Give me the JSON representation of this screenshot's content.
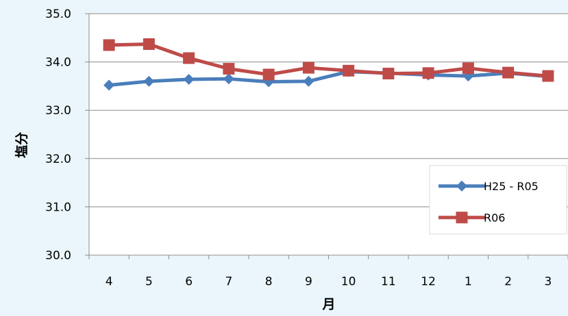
{
  "chart_data": {
    "type": "line",
    "title": "",
    "xlabel": "月",
    "ylabel": "塩分",
    "categories": [
      "4",
      "5",
      "6",
      "7",
      "8",
      "9",
      "10",
      "11",
      "12",
      "1",
      "2",
      "3"
    ],
    "ylim": [
      30.0,
      35.0
    ],
    "yticks": [
      30.0,
      31.0,
      32.0,
      33.0,
      34.0,
      35.0
    ],
    "ytick_labels": [
      "30.0",
      "31.0",
      "32.0",
      "33.0",
      "34.0",
      "35.0"
    ],
    "grid": true,
    "legend_position": "bottom-right",
    "series": [
      {
        "name": "H25 - R05",
        "marker": "diamond",
        "color": "#4a7ebb",
        "values": [
          33.52,
          33.6,
          33.64,
          33.65,
          33.59,
          33.6,
          33.8,
          33.77,
          33.73,
          33.71,
          33.77,
          33.7
        ]
      },
      {
        "name": "R06",
        "marker": "square",
        "color": "#be4b48",
        "values": [
          34.35,
          34.37,
          34.08,
          33.86,
          33.74,
          33.88,
          33.82,
          33.76,
          33.77,
          33.87,
          33.78,
          33.71
        ]
      }
    ]
  }
}
